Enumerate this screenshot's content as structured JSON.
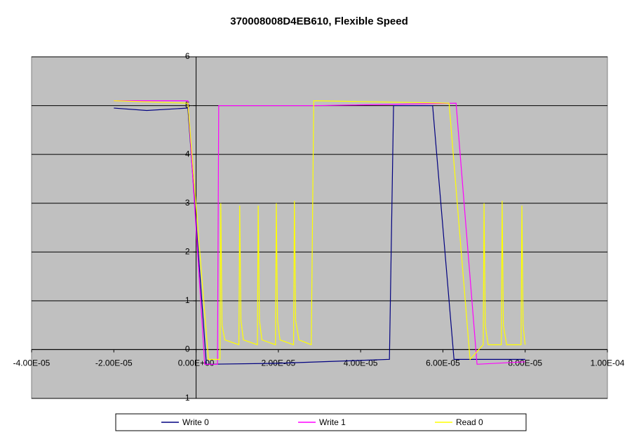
{
  "chart_data": {
    "type": "line",
    "title": "370008008D4EB610, Flexible Speed",
    "xlim": [
      -4e-05,
      0.0001
    ],
    "xticks": [
      {
        "value": -4e-05,
        "label": "-4.00E-05"
      },
      {
        "value": -2e-05,
        "label": "-2.00E-05"
      },
      {
        "value": 0,
        "label": "0.00E+00"
      },
      {
        "value": 2e-05,
        "label": "2.00E-05"
      },
      {
        "value": 4e-05,
        "label": "4.00E-05"
      },
      {
        "value": 6e-05,
        "label": "6.00E-05"
      },
      {
        "value": 8e-05,
        "label": "8.00E-05"
      },
      {
        "value": 0.0001,
        "label": "1.00E-04"
      }
    ],
    "ylim": [
      -1,
      6
    ],
    "yticks": [
      -1,
      0,
      1,
      2,
      3,
      4,
      5,
      6
    ],
    "grid": true,
    "legend": "bottom",
    "series": [
      {
        "name": "Write 0",
        "color": "#000080",
        "x": [
          -2e-05,
          -1.2e-05,
          -2e-06,
          2.5e-06,
          2e-05,
          4.7e-05,
          4.8e-05,
          5.75e-05,
          6.27e-05,
          8e-05
        ],
        "values": [
          4.95,
          4.9,
          4.95,
          -0.3,
          -0.28,
          -0.2,
          5.0,
          5.0,
          -0.2,
          -0.2
        ]
      },
      {
        "name": "Write 1",
        "color": "#ff00ff",
        "x": [
          -2e-05,
          -2e-06,
          2.1e-06,
          5.2e-06,
          5.5e-06,
          3e-05,
          6.32e-05,
          6.83e-05,
          8e-05
        ],
        "values": [
          5.1,
          5.1,
          -0.3,
          -0.3,
          5.0,
          5.0,
          5.05,
          -0.3,
          -0.25
        ]
      },
      {
        "name": "Read 0",
        "color": "#ffff00",
        "x": [
          -2e-05,
          -2e-06,
          3e-06,
          5.8e-06,
          6e-06,
          6.3e-06,
          7e-06,
          1.04e-05,
          1.06e-05,
          1.09e-05,
          1.15e-05,
          1.49e-05,
          1.51e-05,
          1.54e-05,
          1.6e-05,
          1.93e-05,
          1.95e-05,
          1.98e-05,
          2.04e-05,
          2.37e-05,
          2.39e-05,
          2.42e-05,
          2.5e-05,
          2.8e-05,
          2.86e-05,
          6.15e-05,
          6.66e-05,
          6.98e-05,
          7e-05,
          7.03e-05,
          7.1e-05,
          7.42e-05,
          7.44e-05,
          7.47e-05,
          7.55e-05,
          7.9e-05,
          7.92e-05,
          7.95e-05,
          8e-05
        ],
        "values": [
          5.1,
          5.05,
          -0.2,
          -0.2,
          3.0,
          0.5,
          0.2,
          0.1,
          2.95,
          0.6,
          0.2,
          0.1,
          2.95,
          0.6,
          0.2,
          0.1,
          3.0,
          0.6,
          0.2,
          0.1,
          3.05,
          0.6,
          0.2,
          0.1,
          5.1,
          5.05,
          -0.2,
          0.1,
          3.0,
          0.5,
          0.1,
          0.1,
          3.05,
          0.5,
          0.1,
          0.1,
          2.95,
          0.5,
          0.1
        ]
      }
    ]
  }
}
